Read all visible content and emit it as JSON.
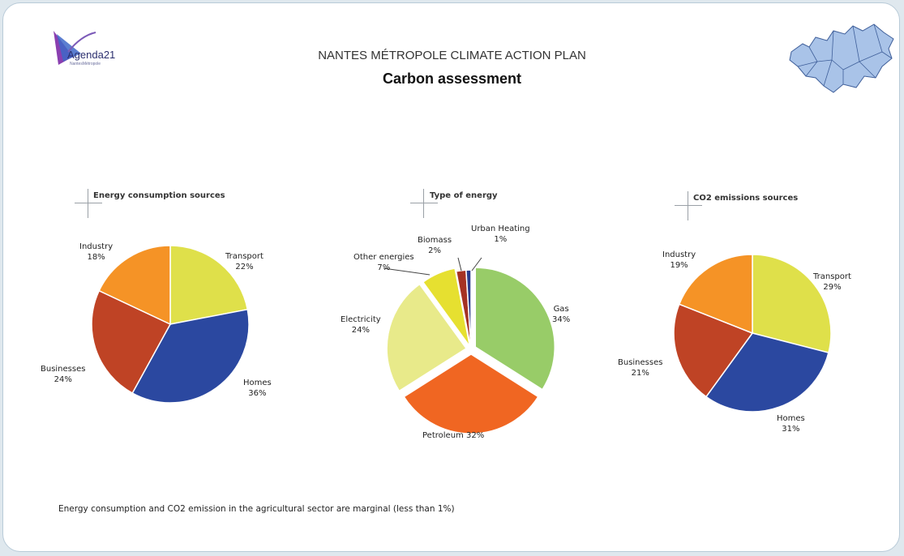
{
  "header": {
    "logo_text": "Agenda21",
    "logo_subtext": "NantesMétropole",
    "title": "NANTES MÉTROPOLE CLIMATE ACTION PLAN",
    "subtitle": "Carbon assessment"
  },
  "footnote": "Energy consumption and CO2 emission in the agricultural sector are marginal (less than 1%)",
  "chart_data": [
    {
      "type": "pie",
      "title": "Energy consumption sources",
      "slices": [
        {
          "label": "Transport",
          "value": 22,
          "value_text": "22%",
          "color": "#dfe04a"
        },
        {
          "label": "Homes",
          "value": 36,
          "value_text": "36%",
          "color": "#2b48a0"
        },
        {
          "label": "Businesses",
          "value": 24,
          "value_text": "24%",
          "color": "#bf4325"
        },
        {
          "label": "Industry",
          "value": 18,
          "value_text": "18%",
          "color": "#f59326"
        }
      ]
    },
    {
      "type": "pie",
      "title": "Type of energy",
      "slices": [
        {
          "label": "Gas",
          "value": 34,
          "value_text": "34%",
          "color": "#98cc68"
        },
        {
          "label": "Petroleum",
          "value": 32,
          "value_text": "32%",
          "color": "#f06622"
        },
        {
          "label": "Electricity",
          "value": 24,
          "value_text": "24%",
          "color": "#e8ea8a"
        },
        {
          "label": "Other energies",
          "value": 7,
          "value_text": "7%",
          "color": "#e6e030"
        },
        {
          "label": "Biomass",
          "value": 2,
          "value_text": "2%",
          "color": "#a53224"
        },
        {
          "label": "Urban Heating",
          "value": 1,
          "value_text": "1%",
          "color": "#2b3c8c"
        }
      ]
    },
    {
      "type": "pie",
      "title": "CO2 emissions sources",
      "slices": [
        {
          "label": "Transport",
          "value": 29,
          "value_text": "29%",
          "color": "#dfe04a"
        },
        {
          "label": "Homes",
          "value": 31,
          "value_text": "31%",
          "color": "#2b48a0"
        },
        {
          "label": "Businesses",
          "value": 21,
          "value_text": "21%",
          "color": "#bf4325"
        },
        {
          "label": "Industry",
          "value": 19,
          "value_text": "19%",
          "color": "#f59326"
        }
      ]
    }
  ]
}
